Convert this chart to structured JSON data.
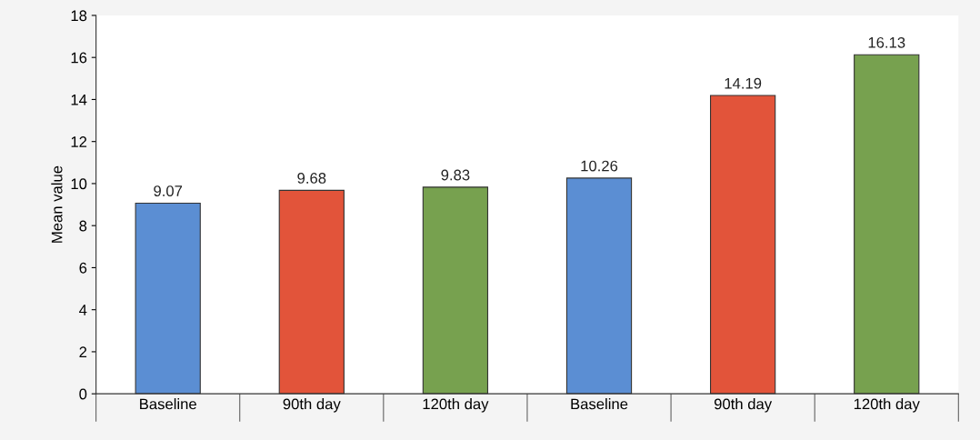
{
  "chart_data": {
    "type": "bar",
    "ylabel": "Mean value",
    "categories": [
      "Baseline",
      "90th day",
      "120th day",
      "Baseline",
      "90th day",
      "120th day"
    ],
    "values": [
      9.07,
      9.68,
      9.83,
      10.26,
      14.19,
      16.13
    ],
    "colors": [
      "#5b8ed3",
      "#e2543a",
      "#77a14f",
      "#5b8ed3",
      "#e2543a",
      "#77a14f"
    ],
    "ylim": [
      0,
      18
    ],
    "yticks": [
      0,
      2,
      4,
      6,
      8,
      10,
      12,
      14,
      16,
      18
    ],
    "data_labels": true,
    "grid": false
  }
}
